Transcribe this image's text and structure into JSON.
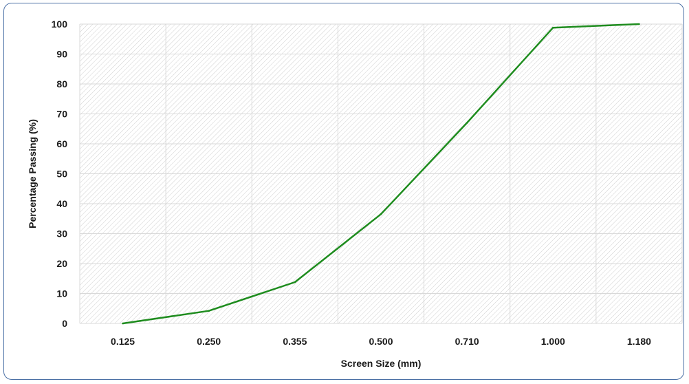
{
  "chart_data": {
    "type": "line",
    "title": "",
    "xlabel": "Screen Size (mm)",
    "ylabel": "Percentage Passing (%)",
    "categories": [
      "0.125",
      "0.250",
      "0.355",
      "0.500",
      "0.710",
      "1.000",
      "1.180"
    ],
    "series": [
      {
        "values": [
          0,
          4.2,
          13.8,
          36.5,
          67,
          98.8,
          100
        ],
        "color": "#1e8c1e"
      }
    ],
    "ylim": [
      0,
      100
    ],
    "yticks": [
      "0",
      "10",
      "20",
      "30",
      "40",
      "50",
      "60",
      "70",
      "80",
      "90",
      "100"
    ],
    "grid": true,
    "legend": "none",
    "plot_background": "hatched",
    "colors": {
      "line": "#1e8c1e",
      "border": "#4a6fa5",
      "grid": "#d9d9d9"
    }
  }
}
